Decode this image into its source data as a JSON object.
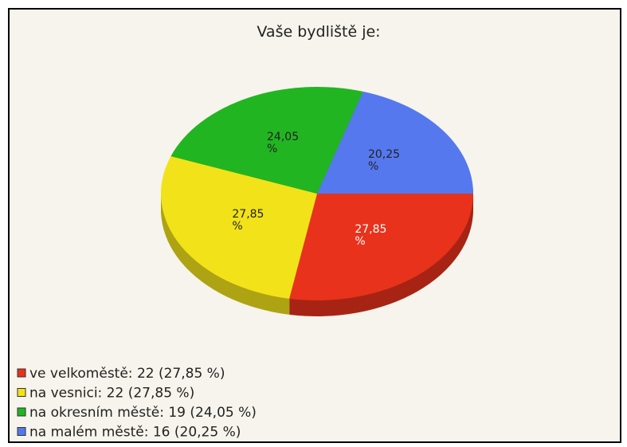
{
  "chart_data": {
    "type": "pie",
    "title": "Vaše bydliště je:",
    "categories": [
      "ve velkoměstě: 22 (27,85 %)",
      "na vesnici: 22 (27,85 %)",
      "na okresním městě: 19 (24,05 %)",
      "na malém městě: 16 (20,25 %)"
    ],
    "values": [
      27.85,
      27.85,
      24.05,
      20.25
    ],
    "value_labels": [
      "27,85 %",
      "27,85 %",
      "24,05 %",
      "20,25 %"
    ],
    "colors": [
      "#e8321c",
      "#f2e21a",
      "#22b522",
      "#5578ee"
    ]
  }
}
